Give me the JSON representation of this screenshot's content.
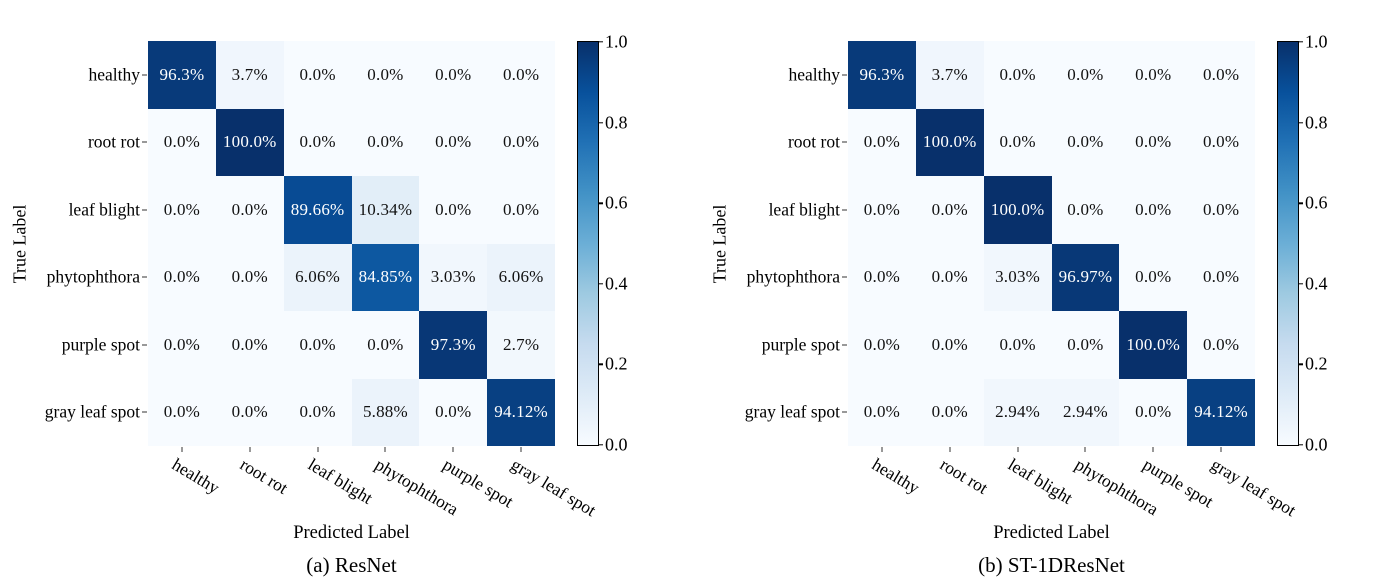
{
  "figure": {
    "background": "#ffffff",
    "text_color": "#000000",
    "cell_text_dark": "#111111",
    "cell_text_light": "#ffffff",
    "colormap": {
      "name": "Blues",
      "anchors": [
        {
          "p": 0.0,
          "c": "#f7fbff"
        },
        {
          "p": 0.125,
          "c": "#deebf7"
        },
        {
          "p": 0.25,
          "c": "#c6dbef"
        },
        {
          "p": 0.375,
          "c": "#9ecae1"
        },
        {
          "p": 0.5,
          "c": "#6baed6"
        },
        {
          "p": 0.625,
          "c": "#4292c6"
        },
        {
          "p": 0.75,
          "c": "#2171b5"
        },
        {
          "p": 0.875,
          "c": "#08519c"
        },
        {
          "p": 1.0,
          "c": "#08306b"
        }
      ]
    },
    "colorbar": {
      "tick_labels": [
        "1.0",
        "0.8",
        "0.6",
        "0.4",
        "0.2",
        "0.0"
      ],
      "tick_values": [
        1.0,
        0.8,
        0.6,
        0.4,
        0.2,
        0.0
      ]
    }
  },
  "chart_data": [
    {
      "type": "heatmap",
      "caption": "(a) ResNet",
      "xlabel": "Predicted Label",
      "ylabel": "True Label",
      "x_categories": [
        "healthy",
        "root rot",
        "leaf blight",
        "phytophthora",
        "purple spot",
        "gray leaf spot"
      ],
      "y_categories": [
        "healthy",
        "root rot",
        "leaf blight",
        "phytophthora",
        "purple spot",
        "gray leaf spot"
      ],
      "colormap": "Blues",
      "value_range": [
        0,
        1
      ],
      "values_percent": [
        [
          96.3,
          3.7,
          0.0,
          0.0,
          0.0,
          0.0
        ],
        [
          0.0,
          100.0,
          0.0,
          0.0,
          0.0,
          0.0
        ],
        [
          0.0,
          0.0,
          89.66,
          10.34,
          0.0,
          0.0
        ],
        [
          0.0,
          0.0,
          6.06,
          84.85,
          3.03,
          6.06
        ],
        [
          0.0,
          0.0,
          0.0,
          0.0,
          97.3,
          2.7
        ],
        [
          0.0,
          0.0,
          0.0,
          5.88,
          0.0,
          94.12
        ]
      ],
      "cell_labels": [
        [
          "96.3%",
          "3.7%",
          "0.0%",
          "0.0%",
          "0.0%",
          "0.0%"
        ],
        [
          "0.0%",
          "100.0%",
          "0.0%",
          "0.0%",
          "0.0%",
          "0.0%"
        ],
        [
          "0.0%",
          "0.0%",
          "89.66%",
          "10.34%",
          "0.0%",
          "0.0%"
        ],
        [
          "0.0%",
          "0.0%",
          "6.06%",
          "84.85%",
          "3.03%",
          "6.06%"
        ],
        [
          "0.0%",
          "0.0%",
          "0.0%",
          "0.0%",
          "97.3%",
          "2.7%"
        ],
        [
          "0.0%",
          "0.0%",
          "0.0%",
          "5.88%",
          "0.0%",
          "94.12%"
        ]
      ]
    },
    {
      "type": "heatmap",
      "caption": "(b) ST-1DResNet",
      "xlabel": "Predicted Label",
      "ylabel": "True Label",
      "x_categories": [
        "healthy",
        "root rot",
        "leaf blight",
        "phytophthora",
        "purple spot",
        "gray leaf spot"
      ],
      "y_categories": [
        "healthy",
        "root rot",
        "leaf blight",
        "phytophthora",
        "purple spot",
        "gray leaf spot"
      ],
      "colormap": "Blues",
      "value_range": [
        0,
        1
      ],
      "values_percent": [
        [
          96.3,
          3.7,
          0.0,
          0.0,
          0.0,
          0.0
        ],
        [
          0.0,
          100.0,
          0.0,
          0.0,
          0.0,
          0.0
        ],
        [
          0.0,
          0.0,
          100.0,
          0.0,
          0.0,
          0.0
        ],
        [
          0.0,
          0.0,
          3.03,
          96.97,
          0.0,
          0.0
        ],
        [
          0.0,
          0.0,
          0.0,
          0.0,
          100.0,
          0.0
        ],
        [
          0.0,
          0.0,
          2.94,
          2.94,
          0.0,
          94.12
        ]
      ],
      "cell_labels": [
        [
          "96.3%",
          "3.7%",
          "0.0%",
          "0.0%",
          "0.0%",
          "0.0%"
        ],
        [
          "0.0%",
          "100.0%",
          "0.0%",
          "0.0%",
          "0.0%",
          "0.0%"
        ],
        [
          "0.0%",
          "0.0%",
          "100.0%",
          "0.0%",
          "0.0%",
          "0.0%"
        ],
        [
          "0.0%",
          "0.0%",
          "3.03%",
          "96.97%",
          "0.0%",
          "0.0%"
        ],
        [
          "0.0%",
          "0.0%",
          "0.0%",
          "0.0%",
          "100.0%",
          "0.0%"
        ],
        [
          "0.0%",
          "0.0%",
          "2.94%",
          "2.94%",
          "0.0%",
          "94.12%"
        ]
      ]
    }
  ]
}
